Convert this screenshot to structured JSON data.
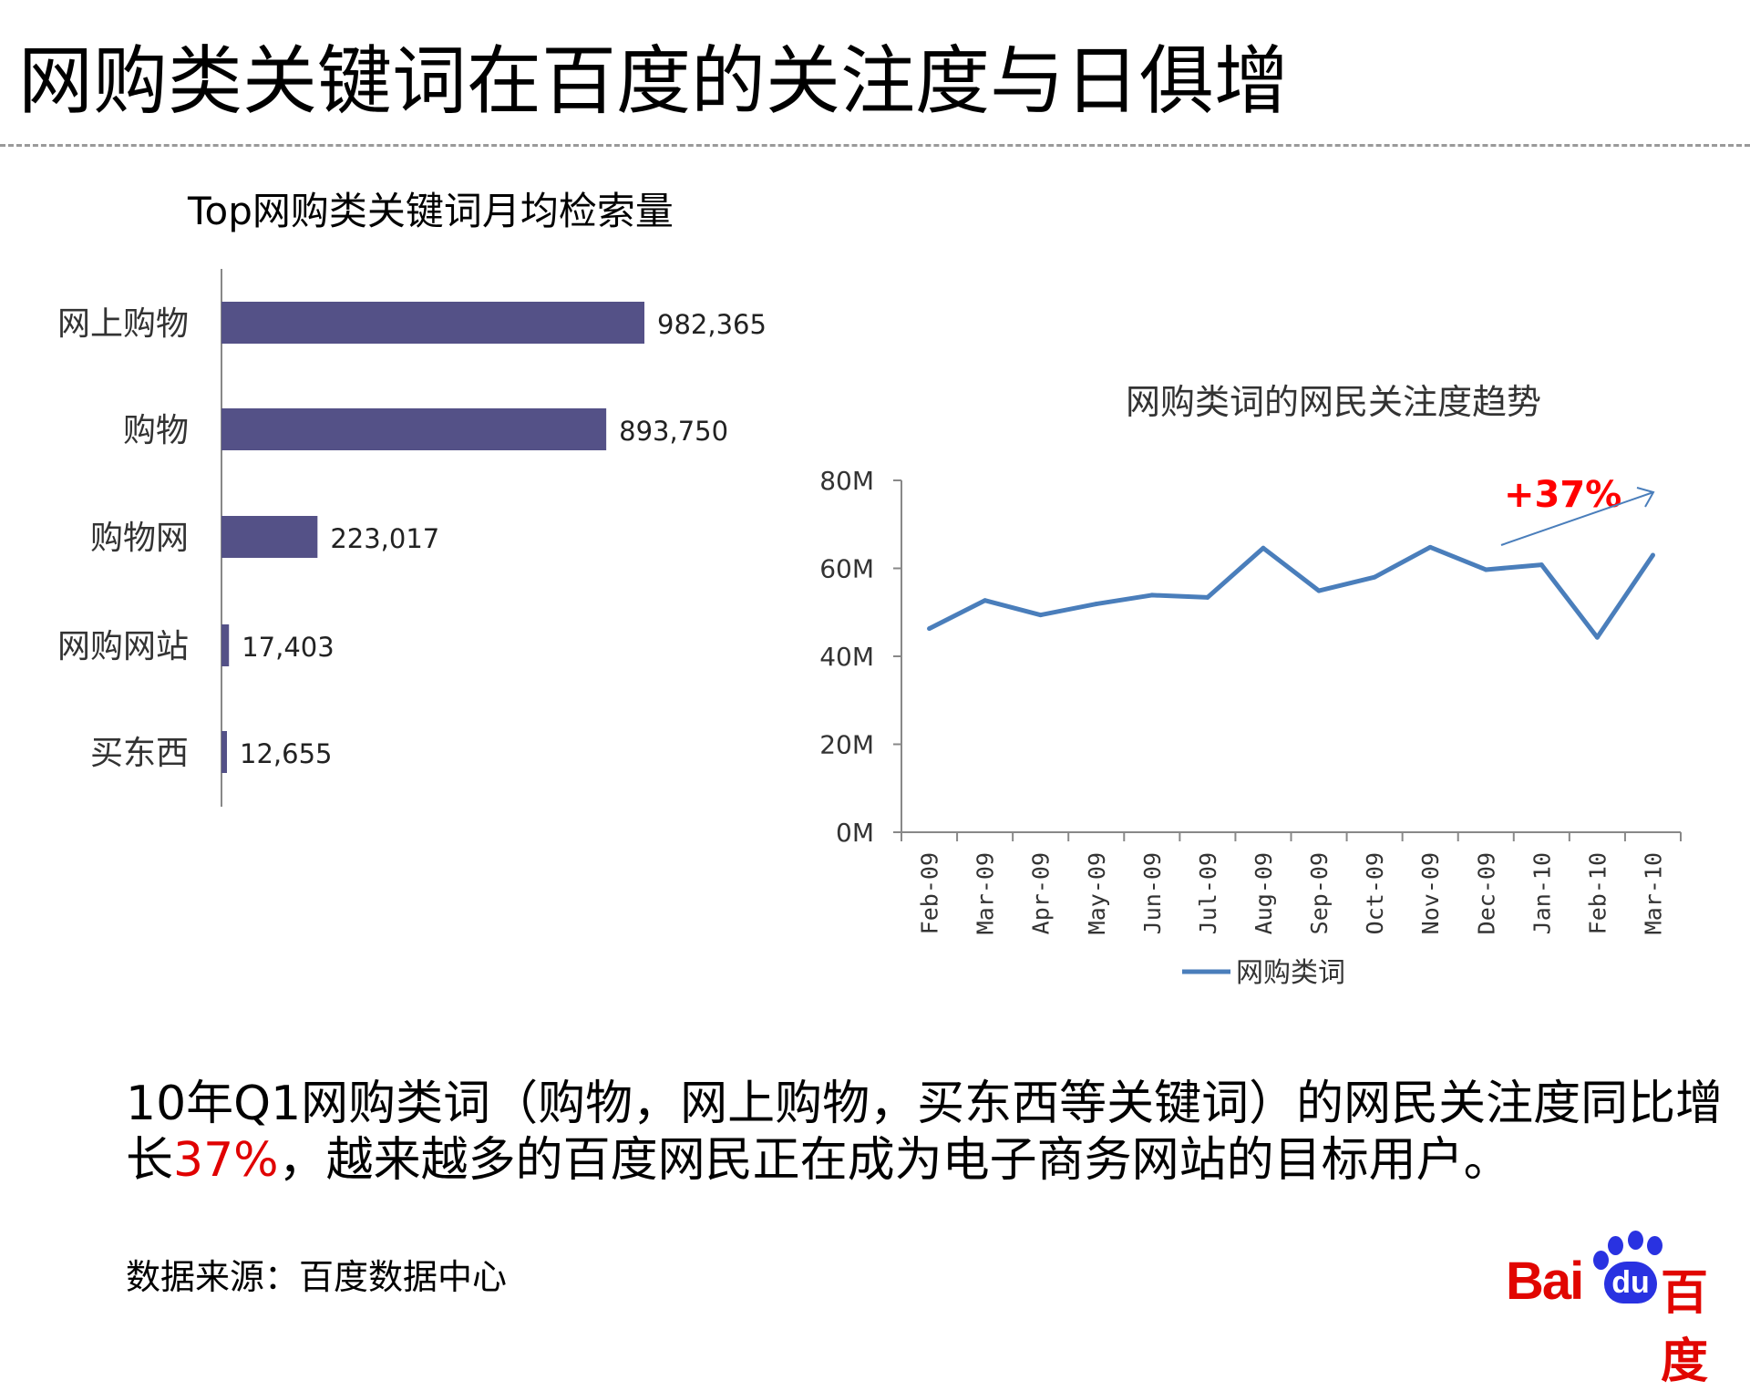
{
  "page": {
    "title": "网购类关键词在百度的关注度与日俱增",
    "summary_before": "10年Q1网购类词（购物，网上购物，买东西等关键词）的网民关注度同比增长",
    "summary_highlight": "37%",
    "summary_after": "，越来越多的百度网民正在成为电子商务网站的目标用户。",
    "source": "数据来源：百度数据中心",
    "logo_text": "Bai du 百度",
    "accent_red": "#e00000"
  },
  "chart_data": [
    {
      "type": "bar",
      "orientation": "horizontal",
      "title": "Top网购类关键词月均检索量",
      "categories": [
        "网上购物",
        "购物",
        "购物网",
        "网购网站",
        "买东西"
      ],
      "values": [
        982365,
        893750,
        223017,
        17403,
        12655
      ],
      "value_labels": [
        "982,365",
        "893,750",
        "223,017",
        "17,403",
        "12,655"
      ],
      "color": "#545187",
      "grid": false
    },
    {
      "type": "line",
      "title": "网购类词的网民关注度趋势",
      "categories": [
        "Feb-09",
        "Mar-09",
        "Apr-09",
        "May-09",
        "Jun-09",
        "Jul-09",
        "Aug-09",
        "Sep-09",
        "Oct-09",
        "Nov-09",
        "Dec-09",
        "Jan-10",
        "Feb-10",
        "Mar-10"
      ],
      "series": [
        {
          "name": "网购类词",
          "values": [
            46.3,
            52.7,
            49.4,
            51.9,
            53.9,
            53.4,
            64.6,
            54.9,
            58.0,
            64.8,
            59.7,
            60.8,
            44.3,
            63.0
          ],
          "color": "#4a7ebb"
        }
      ],
      "y_unit": "M",
      "ylim": [
        0,
        80
      ],
      "yticks": [
        "0M",
        "20M",
        "40M",
        "60M",
        "80M"
      ],
      "grid": false,
      "legend": "bottom",
      "annotation": {
        "text": "+37%",
        "color": "#ff0000"
      }
    }
  ]
}
